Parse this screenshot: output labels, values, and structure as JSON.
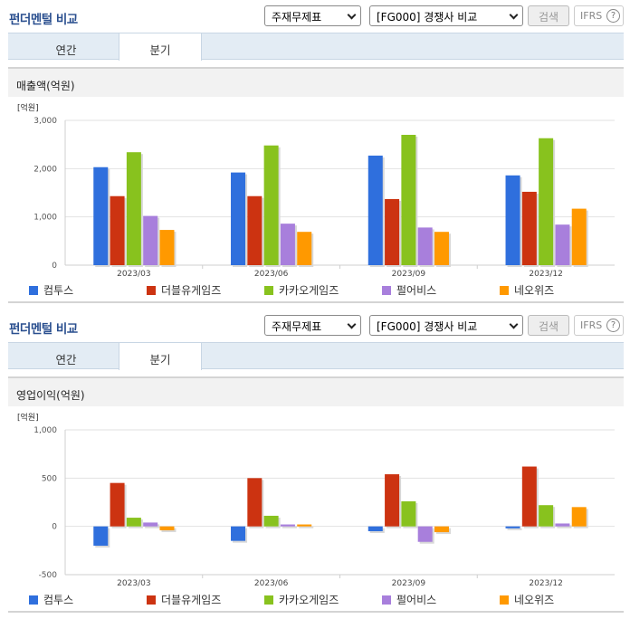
{
  "panels": [
    {
      "title": "펀더멘털 비교",
      "select_a": "주재무제표",
      "select_b": "[FG000] 경쟁사 비교",
      "search_label": "검색",
      "ifrs_label": "IFRS",
      "help_label": "?",
      "tabs": [
        "연간",
        "분기"
      ],
      "active_tab": "분기",
      "section_title": "매출액(억원)"
    },
    {
      "title": "펀더멘털 비교",
      "select_a": "주재무제표",
      "select_b": "[FG000] 경쟁사 비교",
      "search_label": "검색",
      "ifrs_label": "IFRS",
      "help_label": "?",
      "tabs": [
        "연간",
        "분기"
      ],
      "active_tab": "분기",
      "section_title": "영업이익(억원)"
    }
  ],
  "chart_data": [
    {
      "type": "bar",
      "unit_label": "[억원]",
      "categories": [
        "2023/03",
        "2023/06",
        "2023/09",
        "2023/12"
      ],
      "ylim": [
        0,
        3000
      ],
      "yticks": [
        0,
        1000,
        2000,
        3000
      ],
      "ytick_labels": [
        "0",
        "1,000",
        "2,000",
        "3,000"
      ],
      "grid": true,
      "legend_position": "bottom",
      "series": [
        {
          "name": "컴투스",
          "color": "#2f6fdd",
          "values": [
            2030,
            1920,
            2270,
            1860
          ]
        },
        {
          "name": "더블유게임즈",
          "color": "#cc3311",
          "values": [
            1430,
            1430,
            1370,
            1520
          ]
        },
        {
          "name": "카카오게임즈",
          "color": "#88c21e",
          "values": [
            2340,
            2480,
            2700,
            2630
          ]
        },
        {
          "name": "펄어비스",
          "color": "#a87fdc",
          "values": [
            1020,
            860,
            780,
            840
          ]
        },
        {
          "name": "네오위즈",
          "color": "#ff9900",
          "values": [
            730,
            690,
            690,
            1170
          ]
        }
      ]
    },
    {
      "type": "bar",
      "unit_label": "[억원]",
      "categories": [
        "2023/03",
        "2023/06",
        "2023/09",
        "2023/12"
      ],
      "ylim": [
        -500,
        1000
      ],
      "yticks": [
        -500,
        0,
        500,
        1000
      ],
      "ytick_labels": [
        "-500",
        "0",
        "500",
        "1,000"
      ],
      "grid": true,
      "legend_position": "bottom",
      "series": [
        {
          "name": "컴투스",
          "color": "#2f6fdd",
          "values": [
            -200,
            -150,
            -50,
            -20
          ]
        },
        {
          "name": "더블유게임즈",
          "color": "#cc3311",
          "values": [
            450,
            500,
            540,
            620
          ]
        },
        {
          "name": "카카오게임즈",
          "color": "#88c21e",
          "values": [
            90,
            110,
            260,
            220
          ]
        },
        {
          "name": "펄어비스",
          "color": "#a87fdc",
          "values": [
            40,
            20,
            -160,
            30
          ]
        },
        {
          "name": "네오위즈",
          "color": "#ff9900",
          "values": [
            -40,
            20,
            -60,
            200
          ]
        }
      ]
    }
  ]
}
